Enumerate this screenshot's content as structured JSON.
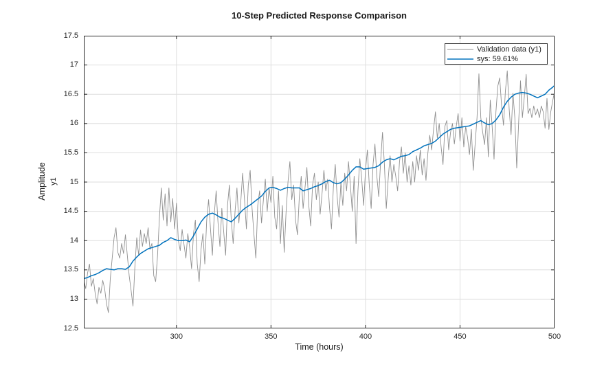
{
  "chart_data": {
    "type": "line",
    "title": "10-Step Predicted Response Comparison",
    "xlabel": "Time (hours)",
    "ylabel": "Amplitude",
    "ylabel2": "y1",
    "xlim": [
      251,
      500
    ],
    "ylim": [
      12.5,
      17.5
    ],
    "xticks": [
      300,
      350,
      400,
      450,
      500
    ],
    "yticks": [
      12.5,
      13,
      13.5,
      14,
      14.5,
      15,
      15.5,
      16,
      16.5,
      17,
      17.5
    ],
    "grid": true,
    "legend_position": "top-right-inside",
    "colors": {
      "axis": "#262626",
      "grid": "#dedede",
      "background": "#ffffff"
    },
    "series": [
      {
        "name": "Validation data (y1)",
        "color": "#8f8f8f",
        "width": 0.9,
        "x_start": 251,
        "x_step": 1,
        "values": [
          13.32,
          13.18,
          13.45,
          13.6,
          13.22,
          13.35,
          13.1,
          12.92,
          13.2,
          13.1,
          13.32,
          13.18,
          12.92,
          12.77,
          13.35,
          13.7,
          14.05,
          14.22,
          13.8,
          13.7,
          13.95,
          13.78,
          14.1,
          13.75,
          13.4,
          13.15,
          12.88,
          13.55,
          14.05,
          13.75,
          14.18,
          13.9,
          14.12,
          13.95,
          14.22,
          13.85,
          13.95,
          13.4,
          13.3,
          13.75,
          14.4,
          14.9,
          14.35,
          14.8,
          14.25,
          14.9,
          14.32,
          14.72,
          14.2,
          14.64,
          14.0,
          13.83,
          14.19,
          13.93,
          13.7,
          14.12,
          13.88,
          13.52,
          14.12,
          14.35,
          13.6,
          13.3,
          13.85,
          14.12,
          13.6,
          14.35,
          14.7,
          14.2,
          13.75,
          14.45,
          14.85,
          14.3,
          13.9,
          14.55,
          14.15,
          13.75,
          14.6,
          14.95,
          14.35,
          13.95,
          14.5,
          14.9,
          14.3,
          14.65,
          15.15,
          14.7,
          14.2,
          14.95,
          15.2,
          14.55,
          14.1,
          13.7,
          14.6,
          14.85,
          14.3,
          14.7,
          15.05,
          14.5,
          14.9,
          14.65,
          15.1,
          14.4,
          14.2,
          14.85,
          13.95,
          14.6,
          13.8,
          14.5,
          15.0,
          15.35,
          14.7,
          14.95,
          14.35,
          14.1,
          14.75,
          15.1,
          14.55,
          14.9,
          15.25,
          14.6,
          14.25,
          14.95,
          15.15,
          14.7,
          15.0,
          14.45,
          14.8,
          15.2,
          14.85,
          15.05,
          14.55,
          14.2,
          14.9,
          15.3,
          14.75,
          14.4,
          15.0,
          14.6,
          15.15,
          14.85,
          15.35,
          14.95,
          14.5,
          15.1,
          13.95,
          14.85,
          15.4,
          15.05,
          14.6,
          15.2,
          15.55,
          14.95,
          14.55,
          15.3,
          15.65,
          15.1,
          14.75,
          15.35,
          15.85,
          15.3,
          14.55,
          15.05,
          15.45,
          15.0,
          15.3,
          15.1,
          14.85,
          15.35,
          15.6,
          15.15,
          15.5,
          15.0,
          15.28,
          14.95,
          15.35,
          15.0,
          15.45,
          15.2,
          15.55,
          15.12,
          15.4,
          15.03,
          15.5,
          15.8,
          15.55,
          15.9,
          16.2,
          15.75,
          16.0,
          15.6,
          15.3,
          15.95,
          16.05,
          15.55,
          15.85,
          16.0,
          15.65,
          15.95,
          16.17,
          15.7,
          16.1,
          15.6,
          15.95,
          15.76,
          15.47,
          15.9,
          15.2,
          15.65,
          16.1,
          16.85,
          16.1,
          15.85,
          15.64,
          16.1,
          15.43,
          16.4,
          15.95,
          15.39,
          16.2,
          16.64,
          16.78,
          16.3,
          15.97,
          16.55,
          16.9,
          16.25,
          15.81,
          16.52,
          16.1,
          15.24,
          16.0,
          16.73,
          16.1,
          16.45,
          16.84,
          16.17,
          16.26,
          16.1,
          16.3,
          16.15,
          16.25,
          16.1,
          16.3,
          16.2,
          15.92,
          16.43,
          15.9,
          16.2,
          16.38,
          16.55
        ]
      },
      {
        "name": "sys: 59.61%",
        "color": "#0072BD",
        "width": 1.5,
        "x_start": 251,
        "x_step": 2,
        "values": [
          13.35,
          13.37,
          13.4,
          13.42,
          13.45,
          13.49,
          13.52,
          13.51,
          13.5,
          13.52,
          13.52,
          13.51,
          13.55,
          13.65,
          13.72,
          13.78,
          13.82,
          13.86,
          13.88,
          13.9,
          13.92,
          13.97,
          14.0,
          14.05,
          14.02,
          14.0,
          14.0,
          14.01,
          13.98,
          14.08,
          14.2,
          14.32,
          14.4,
          14.45,
          14.47,
          14.44,
          14.4,
          14.38,
          14.35,
          14.32,
          14.38,
          14.45,
          14.52,
          14.57,
          14.61,
          14.66,
          14.71,
          14.76,
          14.84,
          14.9,
          14.91,
          14.89,
          14.86,
          14.89,
          14.91,
          14.9,
          14.9,
          14.9,
          14.85,
          14.87,
          14.89,
          14.92,
          14.94,
          14.97,
          15.01,
          15.03,
          14.99,
          14.97,
          14.99,
          15.05,
          15.12,
          15.2,
          15.26,
          15.26,
          15.22,
          15.23,
          15.24,
          15.25,
          15.28,
          15.34,
          15.38,
          15.4,
          15.38,
          15.41,
          15.44,
          15.45,
          15.47,
          15.52,
          15.55,
          15.58,
          15.62,
          15.64,
          15.66,
          15.7,
          15.76,
          15.82,
          15.86,
          15.9,
          15.92,
          15.93,
          15.94,
          15.95,
          15.96,
          15.99,
          16.02,
          16.05,
          16.01,
          15.98,
          16.0,
          16.06,
          16.15,
          16.28,
          16.38,
          16.45,
          16.5,
          16.52,
          16.53,
          16.52,
          16.5,
          16.47,
          16.44,
          16.47,
          16.5,
          16.57,
          16.62,
          16.65
        ]
      }
    ]
  }
}
